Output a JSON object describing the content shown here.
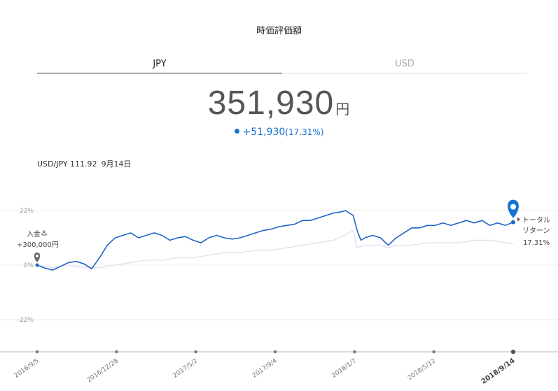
{
  "header": {
    "title": "時価評価額"
  },
  "tabs": [
    {
      "label": "JPY",
      "active": true
    },
    {
      "label": "USD",
      "active": false
    }
  ],
  "valuation": {
    "amount": "351,930",
    "unit": "円",
    "change": "+51,930",
    "change_pct": "(17.31%)",
    "accent": "#1672d6"
  },
  "fx": {
    "label": "USD/JPY 111.92",
    "date": "9月14日"
  },
  "chart_data": {
    "type": "line",
    "title": "",
    "xlabel": "",
    "ylabel": "",
    "ylim": [
      -40,
      30
    ],
    "y_ticks": [
      {
        "value": 22,
        "label": "22%"
      },
      {
        "value": 0,
        "label": "0%"
      },
      {
        "value": -22,
        "label": "-22%"
      }
    ],
    "x_ticks": [
      "2016/9/5",
      "2016/12/28",
      "2017/5/2",
      "2017/9/4",
      "2018/1/7",
      "2018/5/12",
      "2018/9/14"
    ],
    "grid": true,
    "series": [
      {
        "color": "#1f63c9",
        "points": [
          [
            0,
            0
          ],
          [
            2,
            -1.2
          ],
          [
            4,
            -2
          ],
          [
            6,
            -0.5
          ],
          [
            8,
            1
          ],
          [
            10,
            1.5
          ],
          [
            12,
            0.5
          ],
          [
            14,
            -1.5
          ],
          [
            16,
            3
          ],
          [
            18,
            8
          ],
          [
            20,
            11
          ],
          [
            22,
            12
          ],
          [
            24,
            13
          ],
          [
            26,
            11
          ],
          [
            28,
            12
          ],
          [
            30,
            13
          ],
          [
            32,
            12
          ],
          [
            34,
            10
          ],
          [
            36,
            11
          ],
          [
            38,
            11.5
          ],
          [
            40,
            10
          ],
          [
            42,
            9
          ],
          [
            44,
            11
          ],
          [
            46,
            12
          ],
          [
            48,
            11
          ],
          [
            50,
            10.5
          ],
          [
            52,
            11
          ],
          [
            54,
            12
          ],
          [
            56,
            13
          ],
          [
            58,
            14
          ],
          [
            60,
            14.5
          ],
          [
            62,
            15.5
          ],
          [
            64,
            16
          ],
          [
            66,
            16.5
          ],
          [
            68,
            18
          ],
          [
            70,
            18
          ],
          [
            72,
            19
          ],
          [
            74,
            20
          ],
          [
            76,
            21
          ],
          [
            78,
            21.5
          ],
          [
            79,
            22
          ],
          [
            80,
            21
          ],
          [
            81,
            20
          ],
          [
            82,
            14
          ],
          [
            83,
            10
          ],
          [
            84,
            11
          ],
          [
            86,
            12
          ],
          [
            88,
            11
          ],
          [
            90,
            8
          ],
          [
            92,
            11
          ],
          [
            94,
            13
          ],
          [
            96,
            15
          ],
          [
            98,
            15
          ],
          [
            100,
            16
          ],
          [
            102,
            16
          ],
          [
            104,
            17
          ],
          [
            106,
            16
          ],
          [
            108,
            17
          ],
          [
            110,
            18
          ],
          [
            112,
            17
          ],
          [
            114,
            18
          ],
          [
            116,
            16
          ],
          [
            118,
            17
          ],
          [
            120,
            16
          ],
          [
            122,
            17.31
          ]
        ]
      },
      {
        "color": "#e0e2ee",
        "points": [
          [
            0,
            0
          ],
          [
            4,
            -1
          ],
          [
            8,
            0
          ],
          [
            12,
            -1
          ],
          [
            16,
            -1
          ],
          [
            20,
            0
          ],
          [
            24,
            1
          ],
          [
            28,
            2
          ],
          [
            32,
            2
          ],
          [
            36,
            3
          ],
          [
            40,
            3
          ],
          [
            44,
            4
          ],
          [
            48,
            5
          ],
          [
            52,
            5
          ],
          [
            56,
            6
          ],
          [
            60,
            6
          ],
          [
            64,
            7
          ],
          [
            68,
            8
          ],
          [
            72,
            9
          ],
          [
            76,
            10
          ],
          [
            80,
            13
          ],
          [
            81,
            14
          ],
          [
            82,
            7
          ],
          [
            84,
            8
          ],
          [
            88,
            8
          ],
          [
            90,
            7
          ],
          [
            92,
            8
          ],
          [
            96,
            8
          ],
          [
            100,
            9
          ],
          [
            104,
            9
          ],
          [
            108,
            9
          ],
          [
            112,
            10
          ],
          [
            116,
            10
          ],
          [
            120,
            9
          ],
          [
            122,
            8.5
          ]
        ]
      }
    ],
    "annotations": {
      "deposit_label": "入金",
      "deposit_amount": "+300,000円",
      "total_label_line1": "トータル",
      "total_label_line2": "リターン",
      "total_value": "17.31%"
    }
  }
}
